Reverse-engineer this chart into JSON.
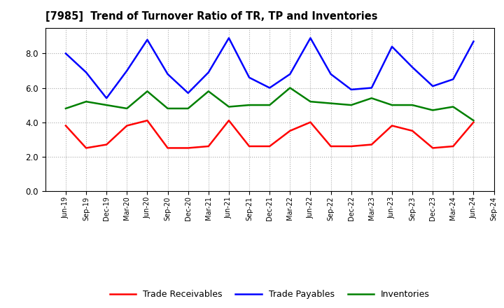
{
  "title": "[7985]  Trend of Turnover Ratio of TR, TP and Inventories",
  "x_labels": [
    "Jun-19",
    "Sep-19",
    "Dec-19",
    "Mar-20",
    "Jun-20",
    "Sep-20",
    "Dec-20",
    "Mar-21",
    "Jun-21",
    "Sep-21",
    "Dec-21",
    "Mar-22",
    "Jun-22",
    "Sep-22",
    "Dec-22",
    "Mar-23",
    "Jun-23",
    "Sep-23",
    "Dec-23",
    "Mar-24",
    "Jun-24",
    "Sep-24"
  ],
  "trade_receivables": [
    3.8,
    2.5,
    2.7,
    3.8,
    4.1,
    2.5,
    2.5,
    2.6,
    4.1,
    2.6,
    2.6,
    3.5,
    4.0,
    2.6,
    2.6,
    2.7,
    3.8,
    3.5,
    2.5,
    2.6,
    4.0,
    null
  ],
  "trade_payables": [
    8.0,
    6.9,
    5.4,
    7.0,
    8.8,
    6.8,
    5.7,
    6.9,
    8.9,
    6.6,
    6.0,
    6.8,
    8.9,
    6.8,
    5.9,
    6.0,
    8.4,
    7.2,
    6.1,
    6.5,
    8.7,
    null
  ],
  "inventories": [
    4.8,
    5.2,
    5.0,
    4.8,
    5.8,
    4.8,
    4.8,
    5.8,
    4.9,
    5.0,
    5.0,
    6.0,
    5.2,
    5.1,
    5.0,
    5.4,
    5.0,
    5.0,
    4.7,
    4.9,
    4.1,
    null
  ],
  "ylim": [
    0.0,
    9.5
  ],
  "yticks": [
    0.0,
    2.0,
    4.0,
    6.0,
    8.0
  ],
  "color_tr": "#ff0000",
  "color_tp": "#0000ff",
  "color_inv": "#008000",
  "legend_labels": [
    "Trade Receivables",
    "Trade Payables",
    "Inventories"
  ],
  "bg_color": "#ffffff",
  "plot_bg_color": "#ffffff"
}
